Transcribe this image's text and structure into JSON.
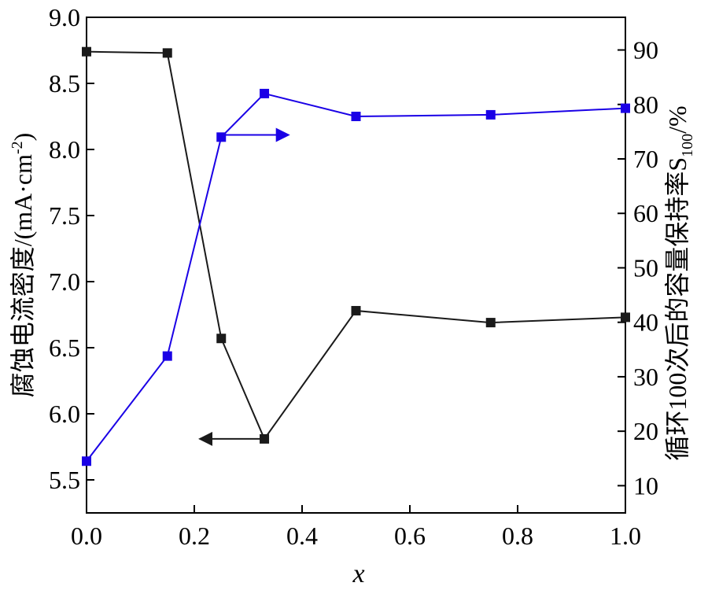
{
  "chart_data": {
    "type": "line",
    "xlabel": "x",
    "ylabel_left": {
      "text": "腐蚀电流密度/(mA·cm",
      "sup": "-2",
      "close": ")"
    },
    "ylabel_right": {
      "text": "循环100次后的容量保持率S",
      "sub": "100",
      "tail": "/%"
    },
    "xlim": [
      0.0,
      1.0
    ],
    "ylim_left": [
      5.25,
      9.0
    ],
    "ylim_right": [
      5,
      96
    ],
    "x_ticks": [
      "0.0",
      "0.2",
      "0.4",
      "0.6",
      "0.8",
      "1.0"
    ],
    "x_tick_values": [
      0.0,
      0.2,
      0.4,
      0.6,
      0.8,
      1.0
    ],
    "y_left_ticks": [
      "5.5",
      "6.0",
      "6.5",
      "7.0",
      "7.5",
      "8.0",
      "8.5",
      "9.0"
    ],
    "y_left_tick_values": [
      5.5,
      6.0,
      6.5,
      7.0,
      7.5,
      8.0,
      8.5,
      9.0
    ],
    "y_right_ticks": [
      "10",
      "20",
      "30",
      "40",
      "50",
      "60",
      "70",
      "80",
      "90"
    ],
    "y_right_tick_values": [
      10,
      20,
      30,
      40,
      50,
      60,
      70,
      80,
      90
    ],
    "series": [
      {
        "axis": "left",
        "color": "#1a1a1a",
        "x": [
          0.0,
          0.15,
          0.25,
          0.33,
          0.5,
          0.75,
          1.0
        ],
        "y": [
          8.74,
          8.73,
          6.57,
          5.81,
          6.78,
          6.69,
          6.73
        ]
      },
      {
        "axis": "right",
        "color": "#1a00e6",
        "x": [
          0.0,
          0.15,
          0.25,
          0.33,
          0.5,
          0.75,
          1.0
        ],
        "y": [
          14.5,
          33.8,
          74.0,
          82.0,
          77.8,
          78.1,
          79.3
        ]
      }
    ],
    "annotations": [
      {
        "type": "arrow",
        "direction": "right",
        "color": "#1a00e6",
        "from": [
          0.25,
          8.11
        ],
        "to": [
          0.375,
          8.11
        ],
        "axis": "left"
      },
      {
        "type": "arrow",
        "direction": "left",
        "color": "#1a1a1a",
        "from": [
          0.33,
          5.81
        ],
        "to": [
          0.21,
          5.81
        ],
        "axis": "left"
      }
    ]
  }
}
